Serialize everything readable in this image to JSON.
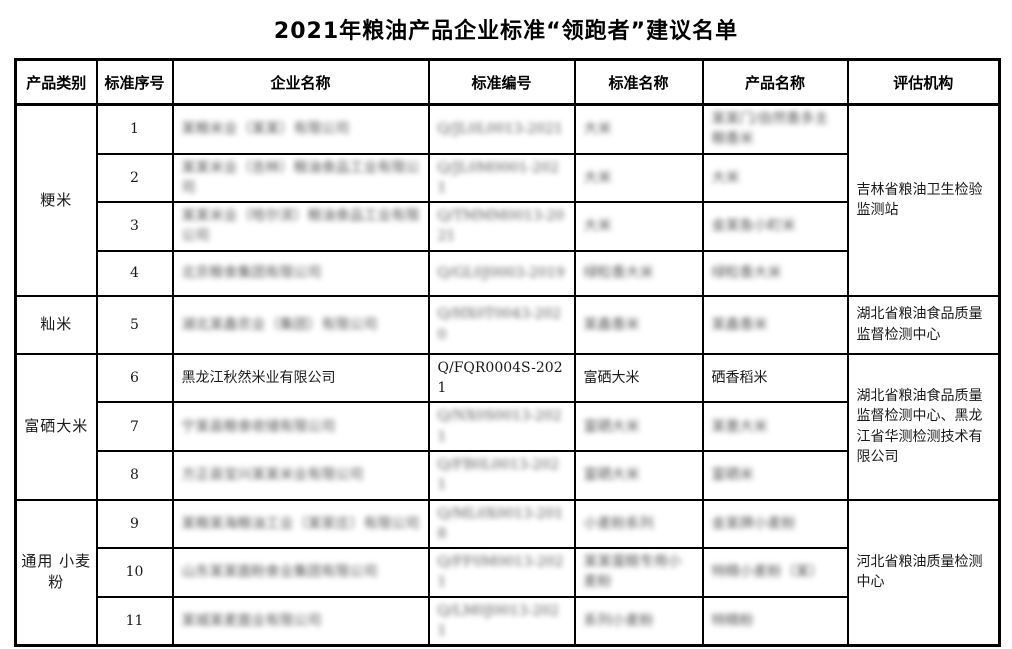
{
  "title": "2021年粮油产品企业标准“领跑者”建议名单",
  "table": {
    "headers": [
      "产品类别",
      "标准序号",
      "企业名称",
      "标准编号",
      "标准名称",
      "产品名称",
      "评估机构"
    ],
    "rows": [
      {
        "category": {
          "text": "粳米",
          "rowspan": 4
        },
        "seq": "1",
        "company": {
          "text": "某粮米业（某某）有限公司",
          "blurred": true
        },
        "code": {
          "text": "Q/JL0L0013-2021",
          "blurred": true
        },
        "std_name": {
          "text": "大米",
          "blurred": true
        },
        "product": {
          "text": "某某门/自然香多主粮香米",
          "blurred": true
        },
        "agency": {
          "text": "吉林省粮油卫生检验监测站",
          "rowspan": 4,
          "blurred": false
        }
      },
      {
        "seq": "2",
        "company": {
          "text": "某某米业（吉林）粮油食品工业有限公司",
          "blurred": true
        },
        "code": {
          "text": "Q/JL0M0001-2021",
          "blurred": true
        },
        "std_name": {
          "text": "大米",
          "blurred": true
        },
        "product": {
          "text": "大米",
          "blurred": true
        }
      },
      {
        "seq": "3",
        "company": {
          "text": "某某米业（哈尔滨）粮油食品工业有限公司",
          "blurred": true
        },
        "code": {
          "text": "Q/TMMM0013-2021",
          "blurred": true
        },
        "std_name": {
          "text": "大米",
          "blurred": true
        },
        "product": {
          "text": "金某鱼小町米",
          "blurred": true
        }
      },
      {
        "seq": "4",
        "company": {
          "text": "北京粮食集团有限公司",
          "blurred": true
        },
        "code": {
          "text": "Q/GL0J0003-2019",
          "blurred": true
        },
        "std_name": {
          "text": "绿粒香大米",
          "blurred": true
        },
        "product": {
          "text": "绿粒香大米",
          "blurred": true
        }
      },
      {
        "category": {
          "text": "籼米",
          "rowspan": 1
        },
        "seq": "5",
        "company": {
          "text": "湖北某鑫农业（集团）有限公司",
          "blurred": true
        },
        "code": {
          "text": "Q/HX0T0043-2020",
          "blurred": true
        },
        "std_name": {
          "text": "某鑫香米",
          "blurred": true
        },
        "product": {
          "text": "某鑫香米",
          "blurred": true
        },
        "agency": {
          "text": "湖北省粮油食品质量监督检测中心",
          "rowspan": 1,
          "blurred": false
        }
      },
      {
        "category": {
          "text": "富硒大米",
          "rowspan": 3
        },
        "seq": "6",
        "company": {
          "text": "黑龙江秋然米业有限公司",
          "blurred": false
        },
        "code": {
          "text": "Q/FQR0004S-2021",
          "blurred": false
        },
        "std_name": {
          "text": "富硒大米",
          "blurred": false
        },
        "product": {
          "text": "硒香稻米",
          "blurred": false
        },
        "agency": {
          "text": "湖北省粮油食品质量监督检测中心、黑龙江省华测检测技术有限公司",
          "rowspan": 3,
          "blurred": false
        }
      },
      {
        "seq": "7",
        "company": {
          "text": "宁某县粮食收储有限公司",
          "blurred": true
        },
        "code": {
          "text": "Q/NX0S0013-2021",
          "blurred": true
        },
        "std_name": {
          "text": "富硒大米",
          "blurred": true
        },
        "product": {
          "text": "某墨大米",
          "blurred": true
        }
      },
      {
        "seq": "8",
        "company": {
          "text": "方正县宝兴某某米业有限公司",
          "blurred": true
        },
        "code": {
          "text": "Q/FB0L0013-2021",
          "blurred": true
        },
        "std_name": {
          "text": "富硒大米",
          "blurred": true
        },
        "product": {
          "text": "富硒米",
          "blurred": true
        }
      },
      {
        "category": {
          "text": "通用 小麦粉",
          "rowspan": 3
        },
        "seq": "9",
        "company": {
          "text": "某粮某海粮油工业（某家庄）有限公司",
          "blurred": true
        },
        "code": {
          "text": "Q/ML0X0013-2018",
          "blurred": true
        },
        "std_name": {
          "text": "小麦粉系列",
          "blurred": true
        },
        "product": {
          "text": "金某牌小麦粉",
          "blurred": true
        },
        "agency": {
          "text": "河北省粮油质量检测中心",
          "rowspan": 3,
          "blurred": false
        }
      },
      {
        "seq": "10",
        "company": {
          "text": "山东某某面粉食业集团有限公司",
          "blurred": true
        },
        "code": {
          "text": "Q/FF0M0013-2021",
          "blurred": true
        },
        "std_name": {
          "text": "某某蛋糕专用小麦粉",
          "blurred": true
        },
        "product": {
          "text": "特精小麦粉（某）",
          "blurred": true
        }
      },
      {
        "seq": "11",
        "company": {
          "text": "某城某麦面业有限公司",
          "blurred": true
        },
        "code": {
          "text": "Q/LM0J0013-2021",
          "blurred": true
        },
        "std_name": {
          "text": "系列小麦粉",
          "blurred": true
        },
        "product": {
          "text": "特精粉",
          "blurred": true
        }
      }
    ]
  }
}
